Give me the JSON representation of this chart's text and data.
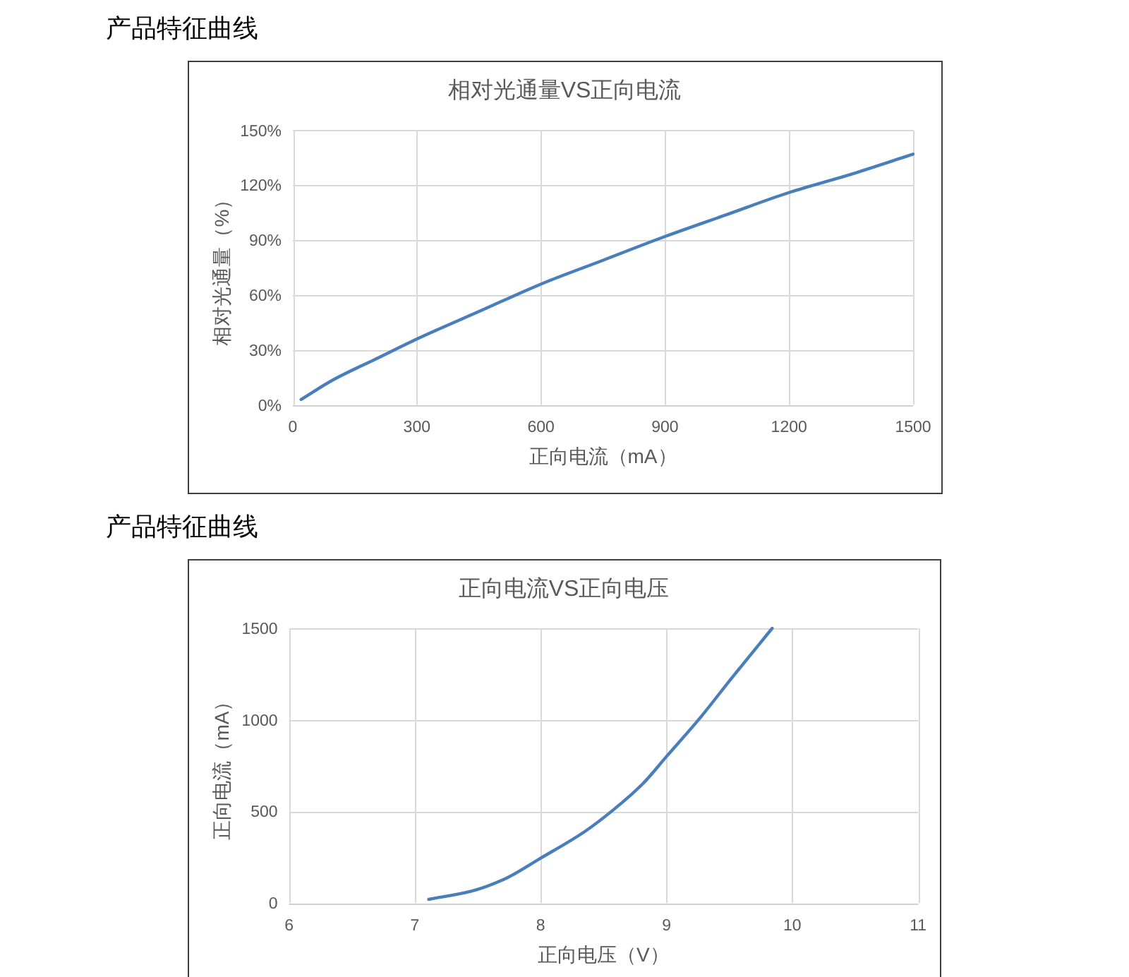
{
  "chart_data": [
    {
      "type": "line",
      "title": "相对光通量VS正向电流",
      "xlabel": "正向电流（mA）",
      "ylabel": "相对光通量（%）",
      "annotations": [
        "产品特征曲线"
      ],
      "x": [
        20,
        100,
        200,
        300,
        450,
        600,
        750,
        900,
        1050,
        1200,
        1350,
        1500
      ],
      "series": [
        {
          "color": "#4a7ebb",
          "values": [
            3,
            14,
            25,
            36,
            51,
            66,
            79,
            92,
            104,
            116,
            126,
            137
          ]
        }
      ],
      "xlim": [
        0,
        1500
      ],
      "ylim": [
        0,
        150
      ],
      "xticks": [
        0,
        300,
        600,
        900,
        1200,
        1500
      ],
      "yticks": [
        {
          "value": 0,
          "label": "0%"
        },
        {
          "value": 30,
          "label": "30%"
        },
        {
          "value": 60,
          "label": "60%"
        },
        {
          "value": 90,
          "label": "90%"
        },
        {
          "value": 120,
          "label": "120%"
        },
        {
          "value": 150,
          "label": "150%"
        }
      ],
      "grid": true
    },
    {
      "type": "line",
      "title": "正向电流VS正向电压",
      "xlabel": "正向电压（V）",
      "ylabel": "正向电流（mA）",
      "annotations": [
        "产品特征曲线"
      ],
      "x": [
        7.11,
        7.45,
        7.71,
        8.0,
        8.35,
        8.58,
        8.81,
        9.0,
        9.26,
        9.52,
        9.84
      ],
      "series": [
        {
          "color": "#4a7ebb",
          "values": [
            20,
            65,
            130,
            245,
            390,
            510,
            650,
            800,
            1005,
            1230,
            1500
          ]
        }
      ],
      "xlim": [
        6,
        11
      ],
      "ylim": [
        0,
        1500
      ],
      "xticks": [
        6,
        7,
        8,
        9,
        10,
        11
      ],
      "yticks": [
        0,
        500,
        1000,
        1500
      ],
      "grid": true
    }
  ]
}
